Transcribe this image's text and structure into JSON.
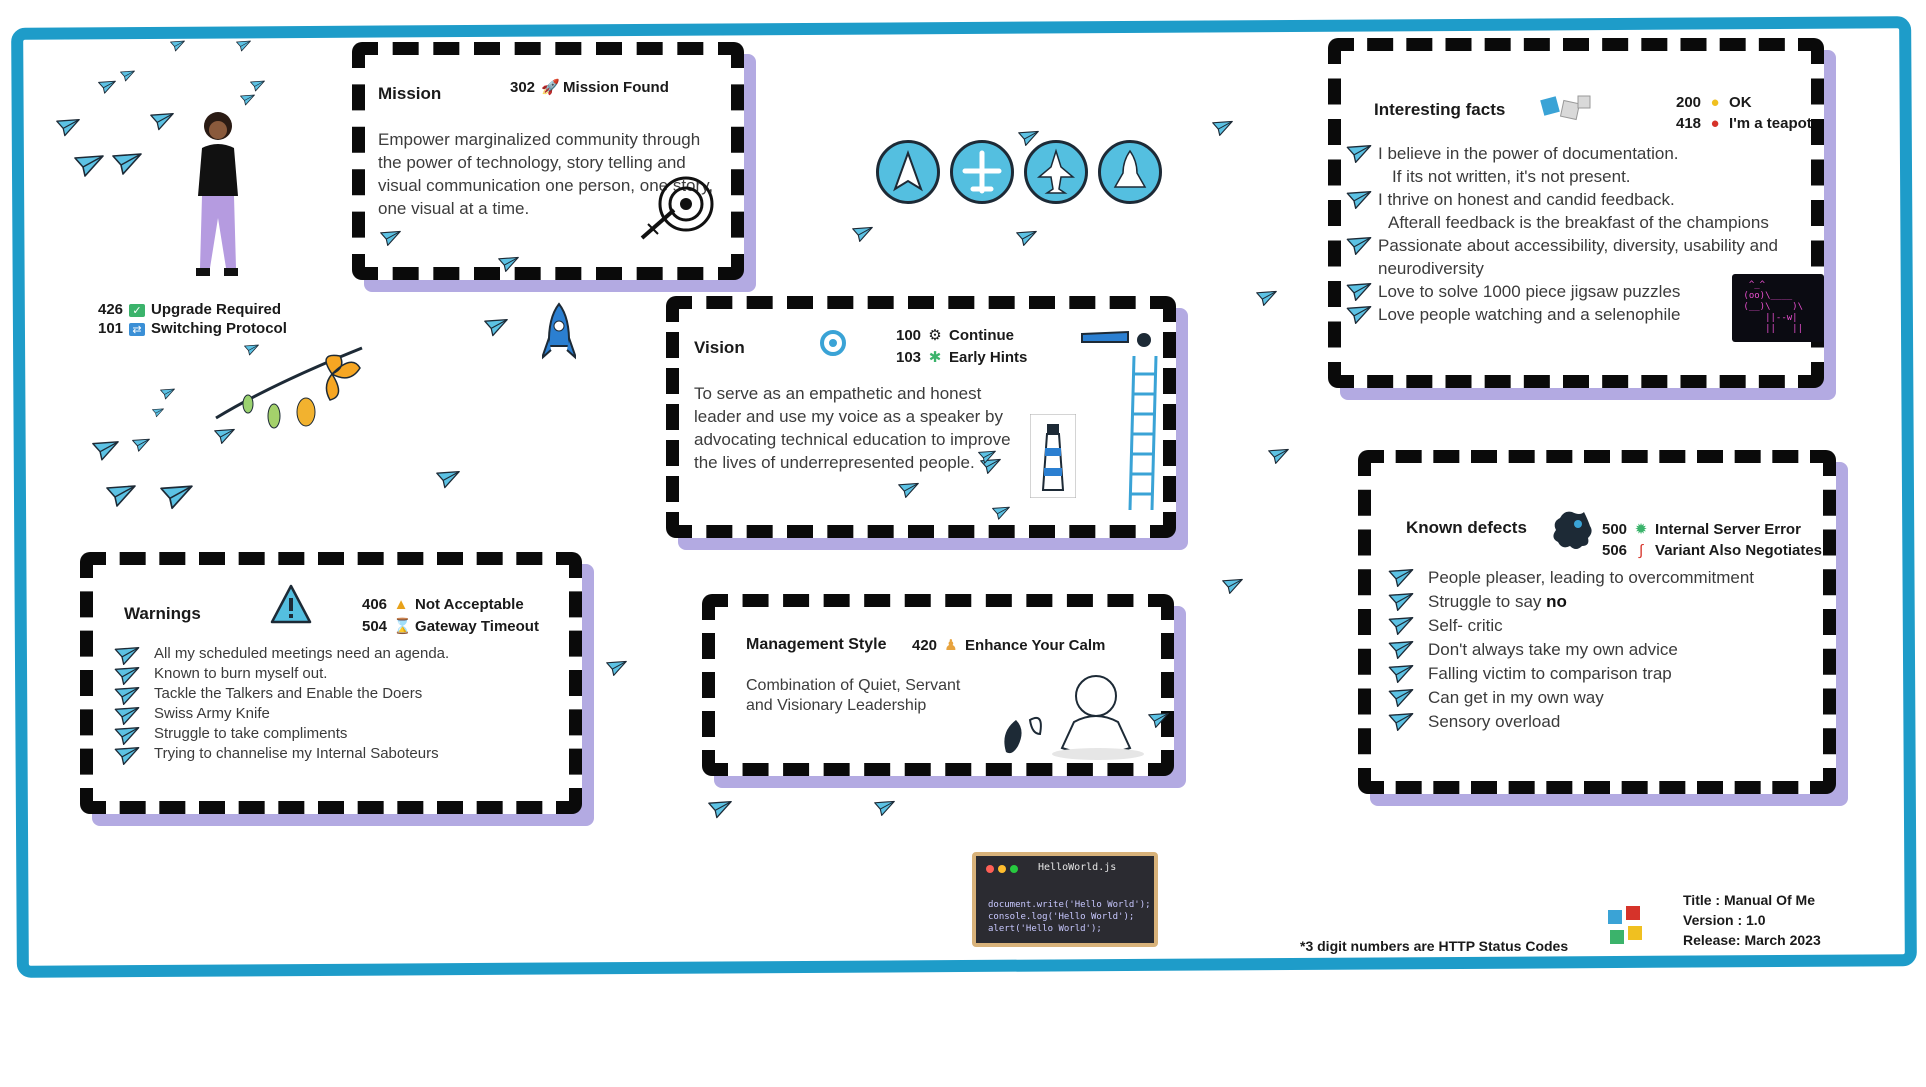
{
  "colors": {
    "frame": "#1e9cc9",
    "card_shadow": "#b3aae2",
    "dash": "#0a0a0a",
    "plane": "#5cc2e4",
    "text": "#3c3c3c"
  },
  "profile": {
    "statuses": [
      {
        "code": "426",
        "icon": "green-check-emoji",
        "label": "Upgrade Required"
      },
      {
        "code": "101",
        "icon": "blue-shuffle-emoji",
        "label": "Switching Protocol"
      }
    ]
  },
  "mission": {
    "title": "Mission",
    "status": {
      "code": "302",
      "icon": "rocket-emoji",
      "label": "Mission Found"
    },
    "text": "Empower marginalized community through the power of technology, story telling and visual communication one person, one story, one visual at a time."
  },
  "vision": {
    "title": "Vision",
    "statuses": [
      {
        "code": "100",
        "icon": "gear-emoji",
        "label": "Continue"
      },
      {
        "code": "103",
        "icon": "puzzle-emoji",
        "label": "Early Hints"
      }
    ],
    "text": "To serve as an empathetic and honest leader and use my voice as a speaker by advocating technical education to improve the lives of underrepresented people."
  },
  "interesting_facts": {
    "title": "Interesting facts",
    "statuses": [
      {
        "code": "200",
        "icon": "lightbulb-emoji",
        "label": "OK"
      },
      {
        "code": "418",
        "icon": "teapot-emoji",
        "label": "I'm a teapot"
      }
    ],
    "items": [
      "I believe in the power of documentation.",
      "If its not written, it's not present.",
      "I thrive on honest and candid feedback.",
      "Afterall feedback is the breakfast of the champions",
      "Passionate about accessibility, diversity, usability and neurodiversity",
      "Love to solve 1000 piece jigsaw puzzles",
      "Love people watching and a selenophile"
    ]
  },
  "warnings": {
    "title": "Warnings",
    "statuses": [
      {
        "code": "406",
        "icon": "warning-emoji",
        "label": "Not Acceptable"
      },
      {
        "code": "504",
        "icon": "hourglass-emoji",
        "label": "Gateway Timeout"
      }
    ],
    "items": [
      "All my scheduled meetings need an  agenda.",
      "Known to burn myself out.",
      "Tackle the Talkers and Enable the Doers",
      "Swiss Army Knife",
      "Struggle to take compliments",
      "Trying to channelise my Internal Saboteurs"
    ]
  },
  "management": {
    "title": "Management Style",
    "status": {
      "code": "420",
      "icon": "meditation-emoji",
      "label": "Enhance Your Calm"
    },
    "line1": "Combination of  Quiet, Servant",
    "line2": "and  Visionary Leadership"
  },
  "defects": {
    "title": "Known defects",
    "statuses": [
      {
        "code": "500",
        "icon": "bug-emoji",
        "label": "Internal Server Error"
      },
      {
        "code": "506",
        "icon": "snake-emoji",
        "label": "Variant Also Negotiates"
      }
    ],
    "items": [
      {
        "text": "People pleaser, leading to overcommitment",
        "bold": ""
      },
      {
        "text": "Struggle  to say ",
        "bold": "no"
      },
      {
        "text": "Self- critic",
        "bold": ""
      },
      {
        "text": "Don't always take my own advice",
        "bold": ""
      },
      {
        "text": "Falling victim to comparison trap",
        "bold": ""
      },
      {
        "text": "Can get in my own way",
        "bold": ""
      },
      {
        "text": "Sensory overload",
        "bold": ""
      }
    ]
  },
  "code_snippet": {
    "filename": "HelloWorld.js",
    "lines": [
      "document.write('Hello World');",
      "console.log('Hello World');",
      "alert('Hello World');"
    ]
  },
  "footer": {
    "note": "*3 digit numbers are HTTP Status Codes",
    "title": "Title : Manual Of Me",
    "version": "Version :  1.0",
    "release": "Release:  March 2023"
  }
}
